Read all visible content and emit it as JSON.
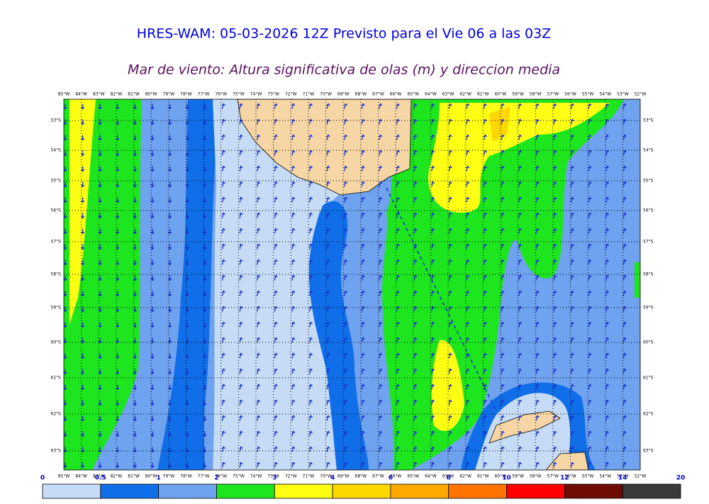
{
  "header": {
    "title": "HRES-WAM: 05-03-2026 12Z Previsto para el Vie 06 a las 03Z",
    "subtitle": "Mar de viento: Altura significativa de olas (m) y direccion media"
  },
  "map": {
    "longitudes": [
      "85°W",
      "84°W",
      "83°W",
      "82°W",
      "81°W",
      "80°W",
      "79°W",
      "78°W",
      "77°W",
      "76°W",
      "75°W",
      "74°W",
      "73°W",
      "72°W",
      "71°W",
      "70°W",
      "69°W",
      "68°W",
      "67°W",
      "66°W",
      "65°W",
      "64°W",
      "63°W",
      "62°W",
      "61°W",
      "60°W",
      "59°W",
      "58°W",
      "57°W",
      "56°W",
      "55°W",
      "54°W",
      "53°W",
      "52°W"
    ],
    "latitudes": [
      "53°S",
      "54°S",
      "55°S",
      "56°S",
      "57°S",
      "58°S",
      "59°S",
      "60°S",
      "61°S",
      "62°S",
      "63°S"
    ]
  },
  "colorbar": {
    "ticks": [
      0,
      0.5,
      1,
      2,
      3,
      4,
      6,
      8,
      10,
      12,
      14,
      20
    ],
    "colors": [
      "#c6dcf6",
      "#0f6ee8",
      "#6fa2ef",
      "#1ee61e",
      "#ffff14",
      "#ffd700",
      "#ffa800",
      "#ff7300",
      "#ff0000",
      "#6e0c04",
      "#3a3a3a"
    ]
  }
}
